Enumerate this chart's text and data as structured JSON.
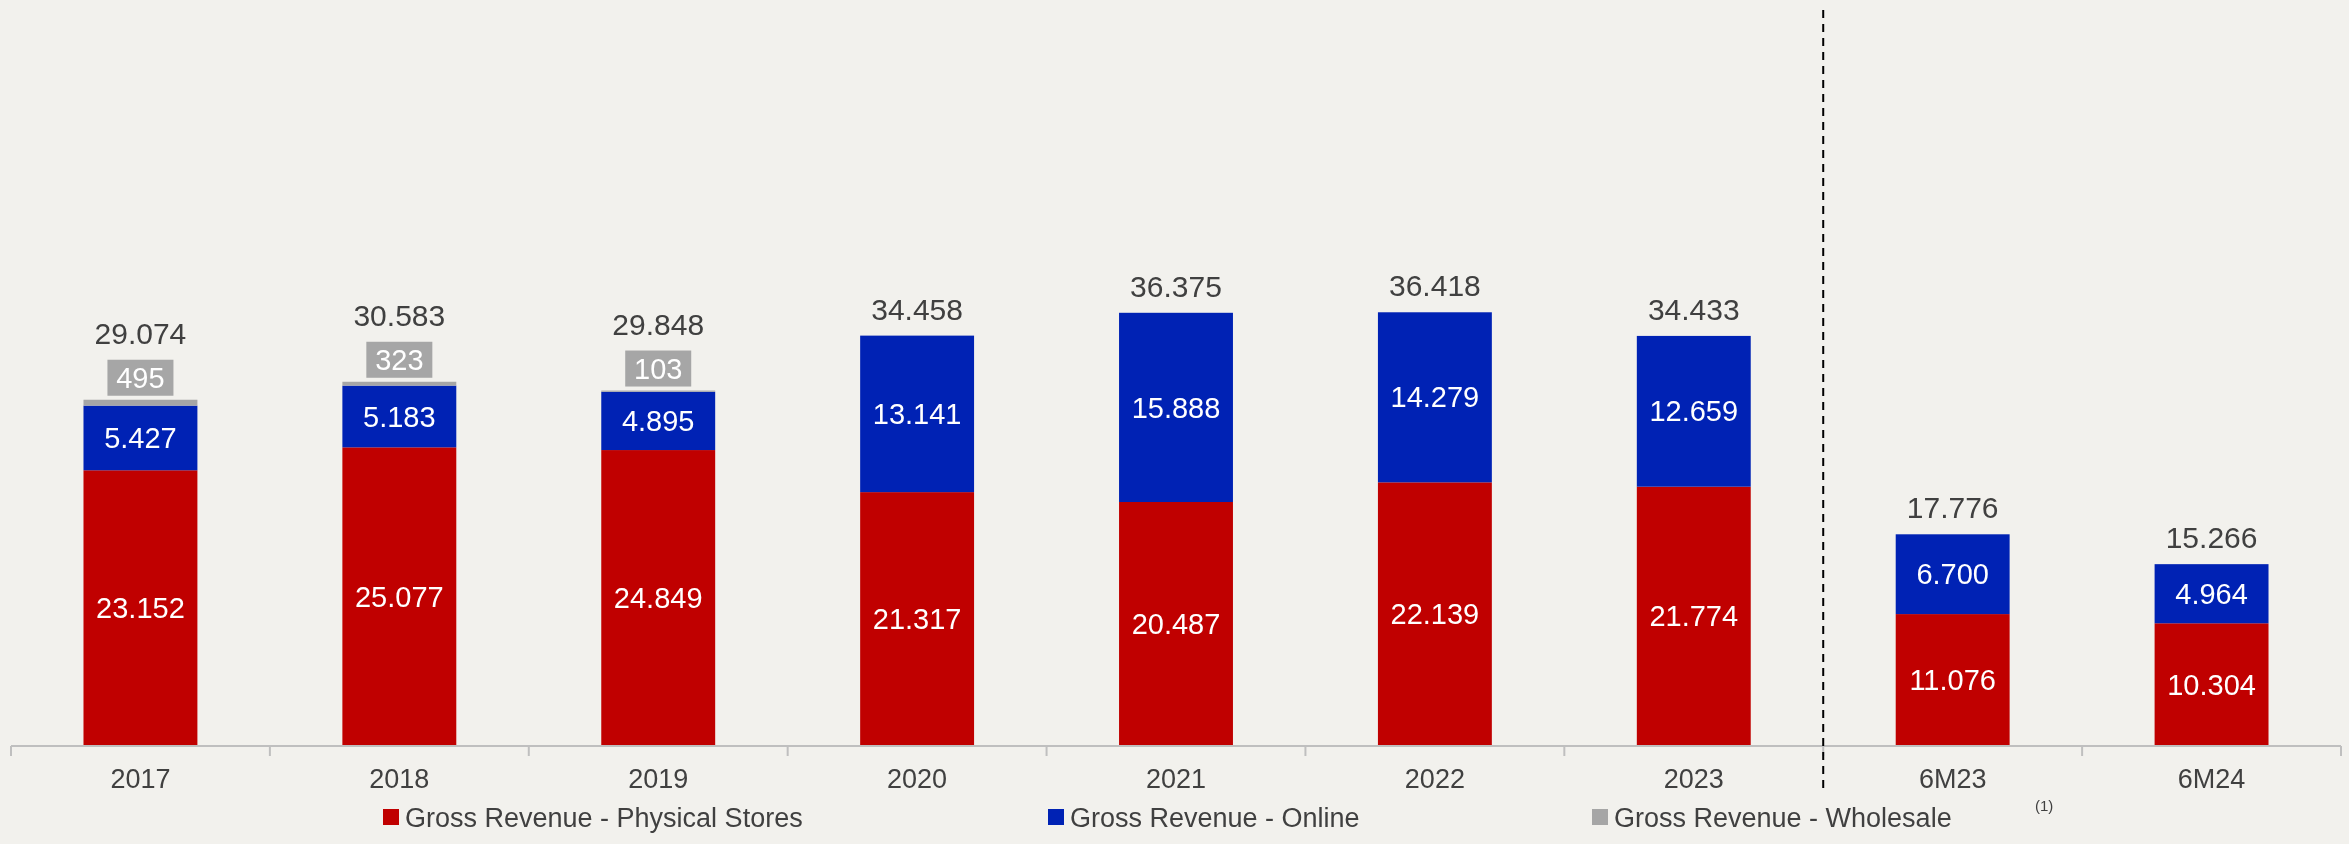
{
  "chart_data": {
    "type": "bar",
    "stacked": true,
    "categories": [
      "2017",
      "2018",
      "2019",
      "2020",
      "2021",
      "2022",
      "2023",
      "6M23",
      "6M24"
    ],
    "series": [
      {
        "name": "Gross Revenue - Physical Stores",
        "color": "#c00000",
        "values": [
          23152,
          25077,
          24849,
          21317,
          20487,
          22139,
          21774,
          11076,
          10304
        ],
        "value_labels": [
          "23.152",
          "25.077",
          "24.849",
          "21.317",
          "20.487",
          "22.139",
          "21.774",
          "11.076",
          "10.304"
        ]
      },
      {
        "name": "Gross Revenue - Online",
        "color": "#0022b4",
        "values": [
          5427,
          5183,
          4895,
          13141,
          15888,
          14279,
          12659,
          6700,
          4964
        ],
        "value_labels": [
          "5.427",
          "5.183",
          "4.895",
          "13.141",
          "15.888",
          "14.279",
          "12.659",
          "6.700",
          "4.964"
        ]
      },
      {
        "name": "Gross Revenue - Wholesale",
        "color": "#a6a6a6",
        "values": [
          495,
          323,
          103,
          null,
          null,
          null,
          null,
          null,
          null
        ],
        "value_labels": [
          "495",
          "323",
          "103",
          null,
          null,
          null,
          null,
          null,
          null
        ]
      }
    ],
    "totals": [
      "29.074",
      "30.583",
      "29.848",
      "34.458",
      "36.375",
      "36.418",
      "34.433",
      "17.776",
      "15.266"
    ],
    "legend": "bottom",
    "annotations": [
      "(1)"
    ]
  }
}
